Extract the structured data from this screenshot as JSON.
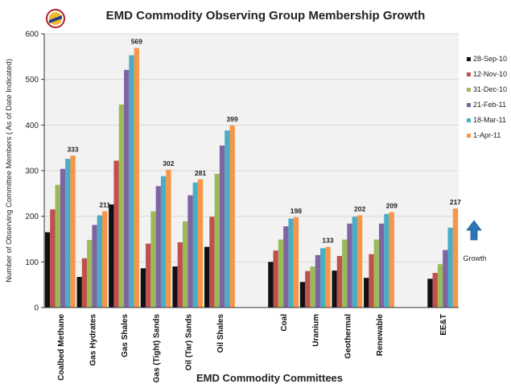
{
  "chart_data": {
    "type": "bar",
    "title": "EMD Commodity Observing Group Membership Growth",
    "xlabel": "EMD Commodity Committees",
    "ylabel": "Number of Observing Committee Members  ( As of Date Indicated)",
    "ylim": [
      0,
      600
    ],
    "yticks": [
      "0",
      "100",
      "200",
      "300",
      "400",
      "500",
      "600"
    ],
    "legend_position": "right",
    "categories": [
      "Coalbed Methane",
      "Gas Hydrates",
      "Gas Shales",
      "Gas (Tight) Sands",
      "Oil (Tar) Sands",
      "Oil Shales",
      "",
      "Coal",
      "Uranium",
      "Geothermal",
      "Renewable",
      "",
      "EE&T"
    ],
    "series": [
      {
        "name": "28-Sep-10",
        "color": "#111111",
        "values": [
          165,
          67,
          226,
          86,
          90,
          133,
          null,
          100,
          56,
          81,
          65,
          null,
          63
        ]
      },
      {
        "name": "12-Nov-10",
        "color": "#c0504d",
        "values": [
          215,
          108,
          322,
          140,
          143,
          199,
          null,
          125,
          80,
          113,
          117,
          null,
          76
        ]
      },
      {
        "name": "31-Dec-10",
        "color": "#9bbb59",
        "values": [
          269,
          148,
          445,
          211,
          189,
          293,
          null,
          149,
          90,
          149,
          149,
          null,
          95
        ]
      },
      {
        "name": "21-Feb-11",
        "color": "#8064a2",
        "values": [
          304,
          181,
          521,
          266,
          246,
          355,
          null,
          178,
          115,
          184,
          184,
          null,
          126
        ]
      },
      {
        "name": "18-Mar-11",
        "color": "#4bacc6",
        "values": [
          326,
          202,
          553,
          288,
          274,
          388,
          null,
          195,
          130,
          199,
          205,
          null,
          175
        ]
      },
      {
        "name": "1-Apr-11",
        "color": "#f79646",
        "values": [
          333,
          211,
          569,
          302,
          281,
          399,
          null,
          198,
          133,
          202,
          209,
          null,
          217
        ]
      }
    ],
    "data_labels": [
      "333",
      "211",
      "569",
      "302",
      "281",
      "399",
      "",
      "198",
      "133",
      "202",
      "209",
      "",
      "217"
    ],
    "annotation": {
      "text": "Growth",
      "arrow_color": "#2e75b6"
    }
  }
}
